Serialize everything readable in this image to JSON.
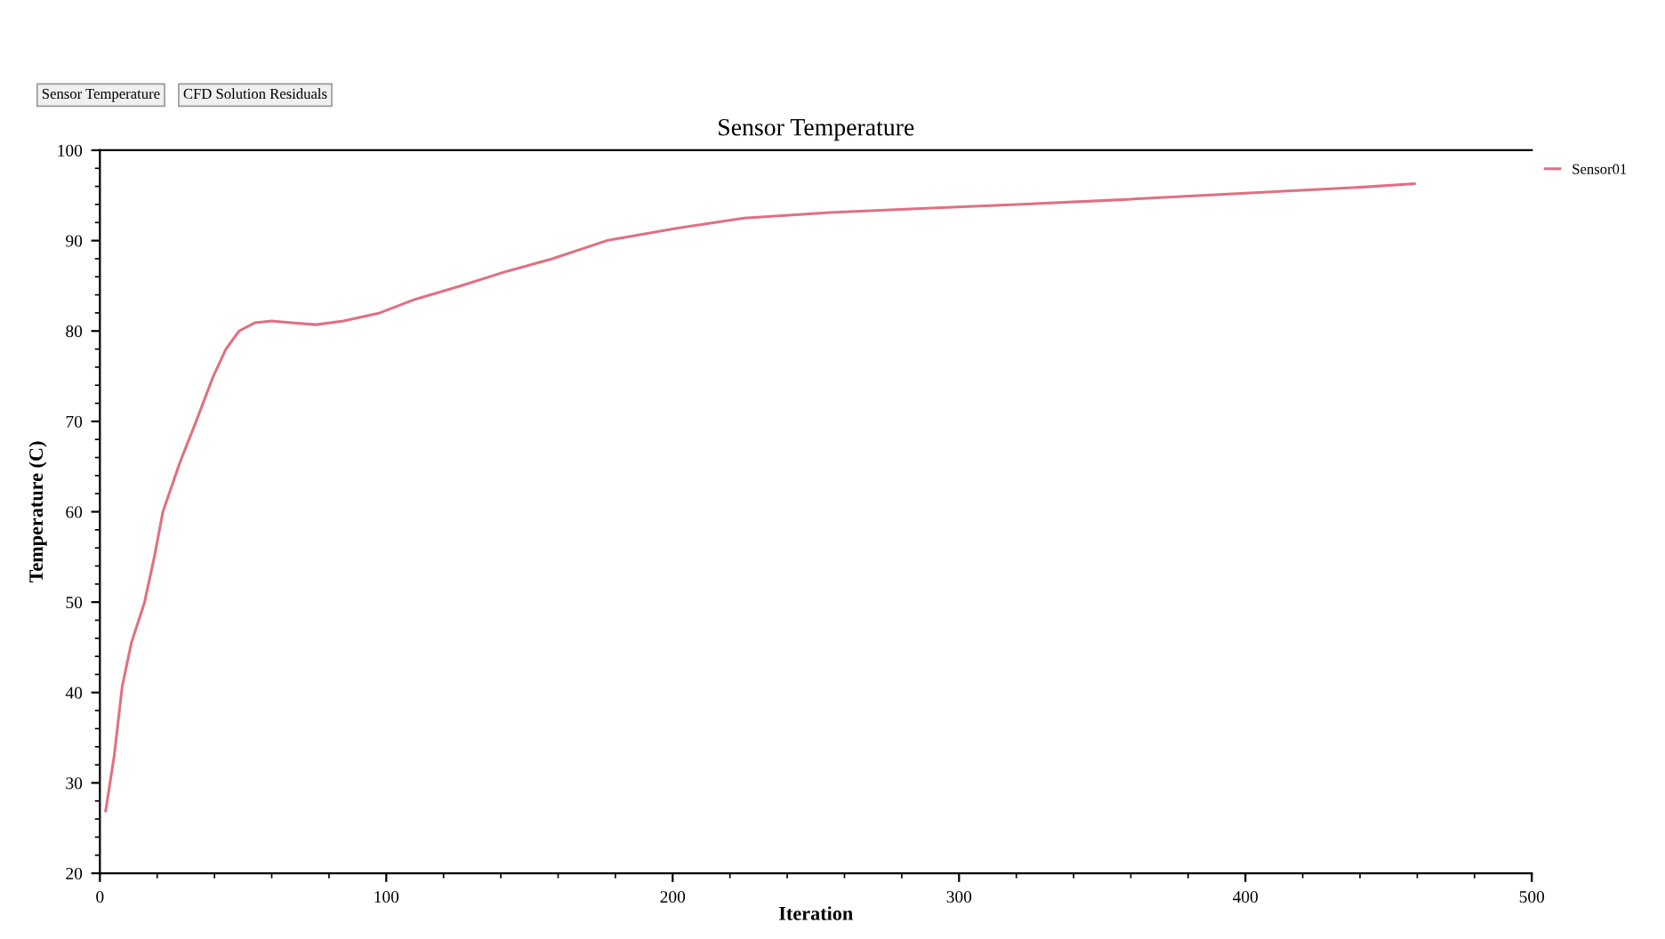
{
  "chart_data": {
    "type": "line",
    "title": "Sensor Temperature",
    "xlabel": "Iteration",
    "ylabel": "Temperature (C)",
    "annotations": [
      "Sensor Temperature",
      "CFD Solution Residuals"
    ],
    "series": [
      {
        "name": "Sensor01",
        "color": "#e07080",
        "x": [
          2,
          5,
          7.8,
          11,
          15.6,
          19,
          22,
          28,
          33.6,
          39.6,
          44,
          48.6,
          54,
          60,
          67,
          75.5,
          85,
          97.7,
          110,
          126,
          142,
          158,
          177,
          200,
          225,
          255,
          283,
          320,
          355,
          385,
          415,
          440,
          459
        ],
        "values": [
          26.9,
          33,
          40.7,
          45.5,
          50,
          55,
          60,
          65.5,
          70,
          75,
          78,
          80,
          80.9,
          81.1,
          80.9,
          80.7,
          81.1,
          82,
          83.5,
          85,
          86.6,
          88,
          90,
          91.3,
          92.5,
          93.1,
          93.5,
          94,
          94.5,
          95,
          95.5,
          95.9,
          96.3
        ]
      }
    ],
    "xlim": [
      0,
      500
    ],
    "ylim": [
      20,
      100
    ],
    "xticks": [
      0,
      100,
      200,
      300,
      400,
      500
    ],
    "yticks": [
      20,
      30,
      40,
      50,
      60,
      70,
      80,
      90,
      100
    ],
    "legend": "top right",
    "marker": "none",
    "line_style": "solid",
    "grid": false
  }
}
